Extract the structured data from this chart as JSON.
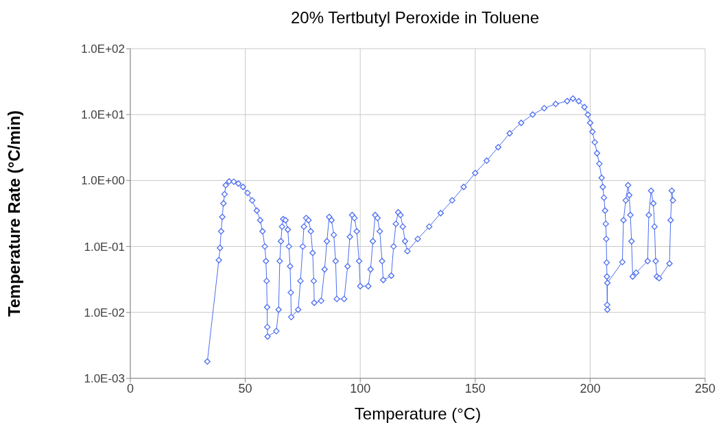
{
  "chart_data": {
    "type": "line",
    "title": "20% Tertbutyl Peroxide in Toluene",
    "xlabel": "Temperature (°C)",
    "ylabel": "Temperature Rate (°C/min)",
    "x": [
      33.5,
      38.5,
      39,
      39.5,
      40,
      40.5,
      41,
      41.5,
      43,
      45,
      47,
      49,
      51,
      53,
      55,
      56.5,
      57.5,
      58.5,
      59,
      59.3,
      59.5,
      59.6,
      59.7,
      63.5,
      64.5,
      65,
      65.5,
      66,
      66.5,
      67.5,
      68.5,
      69,
      69.5,
      69.8,
      70,
      73,
      74,
      75,
      75.5,
      76.5,
      77.5,
      78.5,
      79.3,
      79.8,
      80,
      83,
      84.5,
      85.5,
      86.5,
      87.5,
      88.5,
      89.3,
      89.8,
      93,
      94.5,
      95.5,
      96.5,
      97.5,
      98.5,
      99.5,
      100,
      103.5,
      104.5,
      105.5,
      106.5,
      107.5,
      108.5,
      109.5,
      110,
      113.5,
      114.5,
      115.5,
      116.5,
      117.5,
      118.5,
      119.5,
      120.5,
      125,
      130,
      135,
      140,
      145,
      150,
      155,
      160,
      165,
      170,
      175,
      180,
      185,
      190,
      192.5,
      195,
      197.5,
      199,
      200,
      201,
      202,
      203,
      204,
      205,
      205.5,
      206,
      206.5,
      206.8,
      207,
      207.2,
      207.3,
      207.4,
      207.5,
      207.5,
      214,
      214.5,
      215.5,
      216.5,
      217,
      217.5,
      218,
      218.5,
      220,
      225,
      225.5,
      226.5,
      227.5,
      228,
      228.5,
      229,
      230,
      234.5,
      235,
      235.5,
      236
    ],
    "series": [
      {
        "color": "#4a6cf0",
        "values": [
          0.0018,
          0.062,
          0.095,
          0.17,
          0.28,
          0.45,
          0.62,
          0.85,
          0.97,
          0.96,
          0.9,
          0.8,
          0.65,
          0.5,
          0.35,
          0.25,
          0.17,
          0.1,
          0.06,
          0.03,
          0.012,
          0.006,
          0.0043,
          0.0052,
          0.011,
          0.06,
          0.12,
          0.2,
          0.26,
          0.25,
          0.18,
          0.1,
          0.05,
          0.02,
          0.0085,
          0.011,
          0.03,
          0.1,
          0.2,
          0.27,
          0.25,
          0.17,
          0.08,
          0.03,
          0.014,
          0.015,
          0.045,
          0.12,
          0.28,
          0.25,
          0.15,
          0.06,
          0.016,
          0.016,
          0.05,
          0.14,
          0.3,
          0.27,
          0.17,
          0.06,
          0.025,
          0.025,
          0.045,
          0.12,
          0.3,
          0.27,
          0.17,
          0.06,
          0.031,
          0.036,
          0.1,
          0.22,
          0.33,
          0.3,
          0.2,
          0.12,
          0.085,
          0.13,
          0.2,
          0.32,
          0.5,
          0.8,
          1.3,
          2.0,
          3.2,
          5.2,
          7.5,
          10,
          12.5,
          14.5,
          16,
          17.5,
          16,
          13,
          10,
          7.5,
          5.5,
          3.8,
          2.6,
          1.8,
          1.1,
          0.8,
          0.55,
          0.35,
          0.22,
          0.13,
          0.057,
          0.035,
          0.013,
          0.011,
          0.028,
          0.058,
          0.25,
          0.5,
          0.85,
          0.6,
          0.3,
          0.12,
          0.035,
          0.04,
          0.06,
          0.3,
          0.7,
          0.45,
          0.2,
          0.06,
          0.035,
          0.033,
          0.055,
          0.25,
          0.7,
          0.5
        ]
      }
    ],
    "xlim": [
      0,
      250
    ],
    "xticks": [
      0,
      50,
      100,
      150,
      200,
      250
    ],
    "ylim": [
      0.001,
      100
    ],
    "yticks": [
      {
        "value": 0.001,
        "label": "1.0E-03"
      },
      {
        "value": 0.01,
        "label": "1.0E-02"
      },
      {
        "value": 0.1,
        "label": "1.0E-01"
      },
      {
        "value": 1,
        "label": "1.0E+00"
      },
      {
        "value": 10,
        "label": "1.0E+01"
      },
      {
        "value": 100,
        "label": "1.0E+02"
      }
    ],
    "log": true,
    "grid": true,
    "marker": "diamond",
    "line_style": "solid"
  }
}
